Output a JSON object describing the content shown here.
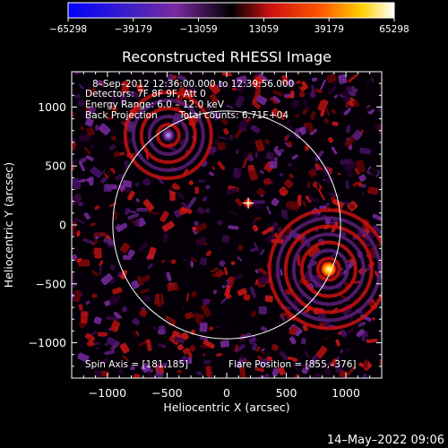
{
  "colorbar": {
    "ticks": [
      "-65298",
      "-39179",
      "-13059",
      "13059",
      "39179",
      "65298"
    ],
    "range": [
      -65298,
      65298
    ],
    "colors": [
      "#0000ff",
      "#7a2aa0",
      "#000000",
      "#cc1010",
      "#ffd000",
      "#ffffff"
    ]
  },
  "chart_data": {
    "type": "heatmap",
    "title": "Reconstructed RHESSI Image",
    "xlabel": "Heliocentric X (arcsec)",
    "ylabel": "Heliocentric Y (arcsec)",
    "xlim": [
      -1300,
      1300
    ],
    "ylim": [
      -1300,
      1300
    ],
    "xticks": [
      -1000,
      -500,
      0,
      500,
      1000
    ],
    "yticks": [
      -1000,
      -500,
      0,
      500,
      1000
    ],
    "xtick_labels": [
      "−1000",
      "−500",
      "0",
      "500",
      "1000"
    ],
    "ytick_labels": [
      "−1000",
      "−500",
      "0",
      "500",
      "1000"
    ],
    "solar_limb": {
      "center": [
        0,
        0
      ],
      "radius": 955
    },
    "spin_axis_marker": [
      181,
      185
    ],
    "sources": [
      {
        "x": 855,
        "y": -376,
        "peak": 65298
      },
      {
        "x": 181,
        "y": 185,
        "peak": 30000
      },
      {
        "x": -490,
        "y": 760,
        "peak": 20000
      }
    ],
    "annotations": {
      "time_range": "8–Sep–2012 12:36:00.000 to 12:39:56.000",
      "detectors": "Detectors: 7F 8F 9F, Att 0",
      "energy": "Energy Range: 6.0 – 12.0 keV",
      "method": "Back Projection",
      "counts": "Total counts: 6.71E+04",
      "spin_axis": "Spin Axis = [181,185]",
      "flare_position": "Flare Position = [855,–376]"
    }
  },
  "timestamp": "14–May–2022 09:06"
}
